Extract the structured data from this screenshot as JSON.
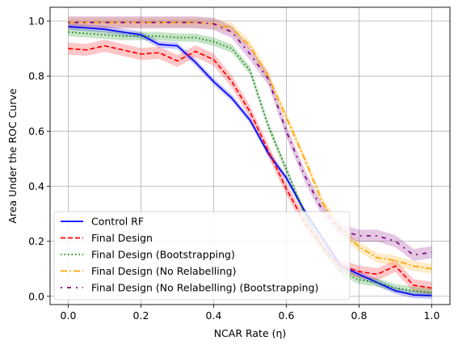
{
  "chart_data": {
    "type": "line",
    "title": "",
    "xlabel": "NCAR Rate (η)",
    "ylabel": "Area Under the ROC Curve",
    "xlim": [
      -0.05,
      1.05
    ],
    "ylim": [
      -0.03,
      1.05
    ],
    "xticks": [
      0.0,
      0.2,
      0.4,
      0.6,
      0.8,
      1.0
    ],
    "xtick_labels": [
      "0.0",
      "0.2",
      "0.4",
      "0.6",
      "0.8",
      "1.0"
    ],
    "yticks": [
      0.0,
      0.2,
      0.4,
      0.6,
      0.8,
      1.0
    ],
    "ytick_labels": [
      "0.0",
      "0.2",
      "0.4",
      "0.6",
      "0.8",
      "1.0"
    ],
    "grid": true,
    "legend_position": "lower-left",
    "x": [
      0,
      0.05,
      0.1,
      0.15,
      0.2,
      0.25,
      0.3,
      0.35,
      0.4,
      0.45,
      0.5,
      0.55,
      0.6,
      0.65,
      0.7,
      0.75,
      0.8,
      0.85,
      0.9,
      0.95,
      1.0
    ],
    "series": [
      {
        "name": "Control RF",
        "color": "#0000ff",
        "dash": "solid",
        "values": [
          0.98,
          0.975,
          0.97,
          0.96,
          0.95,
          0.915,
          0.91,
          0.85,
          0.78,
          0.72,
          0.64,
          0.52,
          0.43,
          0.31,
          0.21,
          0.11,
          0.08,
          0.05,
          0.02,
          0.005,
          0.003
        ],
        "band": 0.012
      },
      {
        "name": "Final Design",
        "color": "#ff0000",
        "dash": "dashed",
        "values": [
          0.9,
          0.895,
          0.91,
          0.895,
          0.88,
          0.885,
          0.855,
          0.89,
          0.86,
          0.78,
          0.67,
          0.53,
          0.39,
          0.27,
          0.18,
          0.11,
          0.09,
          0.08,
          0.11,
          0.04,
          0.03
        ],
        "band": 0.022
      },
      {
        "name": "Final Design (Bootstrapping)",
        "color": "#008000",
        "dash": "dotted",
        "values": [
          0.96,
          0.955,
          0.95,
          0.945,
          0.945,
          0.945,
          0.94,
          0.94,
          0.925,
          0.9,
          0.82,
          0.62,
          0.46,
          0.3,
          0.18,
          0.09,
          0.06,
          0.05,
          0.03,
          0.02,
          0.013
        ],
        "band": 0.015
      },
      {
        "name": "Final Design (No Relabelling)",
        "color": "#ffa500",
        "dash": "dashdot",
        "values": [
          0.995,
          0.995,
          0.995,
          0.995,
          0.995,
          0.995,
          0.995,
          0.995,
          0.99,
          0.975,
          0.91,
          0.8,
          0.65,
          0.5,
          0.34,
          0.24,
          0.18,
          0.14,
          0.13,
          0.11,
          0.1
        ],
        "band": 0.018
      },
      {
        "name": "Final Design (No Relabelling) (Bootstrapping)",
        "color": "#800080",
        "dash": "loosedashdot",
        "values": [
          0.995,
          0.995,
          0.995,
          0.995,
          0.995,
          0.995,
          0.995,
          0.995,
          0.99,
          0.96,
          0.88,
          0.79,
          0.6,
          0.44,
          0.31,
          0.24,
          0.22,
          0.22,
          0.2,
          0.15,
          0.16
        ],
        "band": 0.022
      }
    ]
  }
}
